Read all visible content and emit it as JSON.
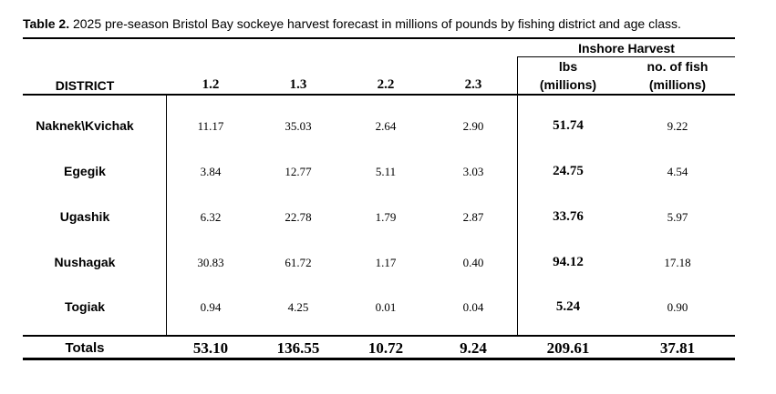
{
  "caption": {
    "label": "Table 2.",
    "text": " 2025 pre-season Bristol Bay sockeye harvest forecast in millions of pounds by fishing district and age class."
  },
  "headers": {
    "district": "DISTRICT",
    "ages": [
      "1.2",
      "1.3",
      "2.2",
      "2.3"
    ],
    "inshore": "Inshore Harvest",
    "lbs_top": "lbs",
    "lbs_bottom": "(millions)",
    "fish_top": "no. of fish",
    "fish_bottom": "(millions)"
  },
  "rows": [
    {
      "district": "Naknek\\Kvichak",
      "values": [
        "11.17",
        "35.03",
        "2.64",
        "2.90"
      ],
      "lbs": "51.74",
      "fish": "9.22"
    },
    {
      "district": "Egegik",
      "values": [
        "3.84",
        "12.77",
        "5.11",
        "3.03"
      ],
      "lbs": "24.75",
      "fish": "4.54"
    },
    {
      "district": "Ugashik",
      "values": [
        "6.32",
        "22.78",
        "1.79",
        "2.87"
      ],
      "lbs": "33.76",
      "fish": "5.97"
    },
    {
      "district": "Nushagak",
      "values": [
        "30.83",
        "61.72",
        "1.17",
        "0.40"
      ],
      "lbs": "94.12",
      "fish": "17.18"
    },
    {
      "district": "Togiak",
      "values": [
        "0.94",
        "4.25",
        "0.01",
        "0.04"
      ],
      "lbs": "5.24",
      "fish": "0.90"
    }
  ],
  "totals": {
    "label": "Totals",
    "values": [
      "53.10",
      "136.55",
      "10.72",
      "9.24"
    ],
    "lbs": "209.61",
    "fish": "37.81"
  }
}
